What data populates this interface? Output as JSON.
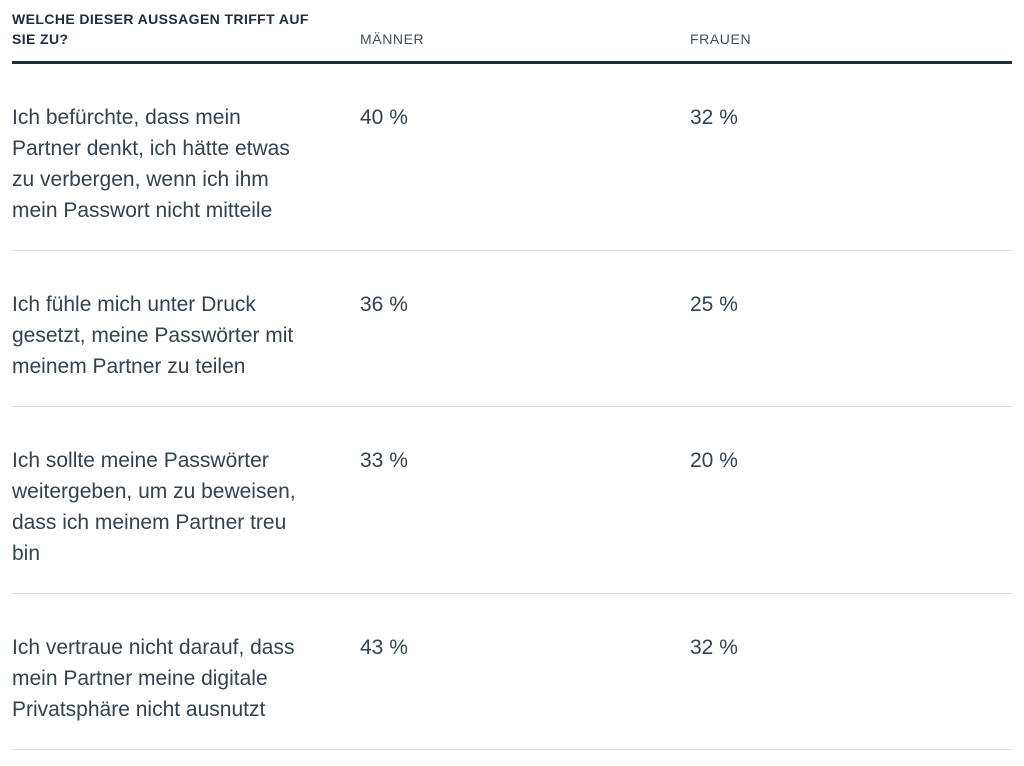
{
  "table": {
    "question_header": "WELCHE DIESER AUSSAGEN TRIFFT AUF SIE ZU?",
    "columns": {
      "men": "MÄNNER",
      "women": "FRAUEN"
    },
    "rows": [
      {
        "statement": "Ich befürchte, dass mein Partner denkt, ich hätte etwas zu verbergen, wenn ich ihm mein Passwort nicht mitteile",
        "maenner": "40 %",
        "frauen": "32 %"
      },
      {
        "statement": "Ich fühle mich unter Druck gesetzt, meine Passwörter mit meinem Partner zu teilen",
        "maenner": "36 %",
        "frauen": "25 %"
      },
      {
        "statement": "Ich sollte meine Passwörter weitergeben, um zu beweisen, dass ich meinem Partner treu bin",
        "maenner": "33 %",
        "frauen": "20 %"
      },
      {
        "statement": "Ich vertraue nicht darauf, dass mein Partner meine digitale Privatsphäre nicht ausnutzt",
        "maenner": "43 %",
        "frauen": "32 %"
      }
    ]
  },
  "colors": {
    "header_text": "#1e2c3c",
    "heavy_rule": "#1e2c3c",
    "column_label": "#414e5a",
    "body_text": "#32424f",
    "row_divider": "#d8dcdf",
    "background": "#ffffff"
  },
  "chart_data": {
    "type": "table",
    "title": "WELCHE DIESER AUSSAGEN TRIFFT AUF SIE ZU?",
    "categories": [
      "Ich befürchte, dass mein Partner denkt, ich hätte etwas zu verbergen, wenn ich ihm mein Passwort nicht mitteile",
      "Ich fühle mich unter Druck gesetzt, meine Passwörter mit meinem Partner zu teilen",
      "Ich sollte meine Passwörter weitergeben, um zu beweisen, dass ich meinem Partner treu bin",
      "Ich vertraue nicht darauf, dass mein Partner meine digitale Privatsphäre nicht ausnutzt"
    ],
    "series": [
      {
        "name": "MÄNNER",
        "values": [
          40,
          36,
          33,
          43
        ]
      },
      {
        "name": "FRAUEN",
        "values": [
          32,
          25,
          20,
          32
        ]
      }
    ],
    "unit": "%"
  }
}
